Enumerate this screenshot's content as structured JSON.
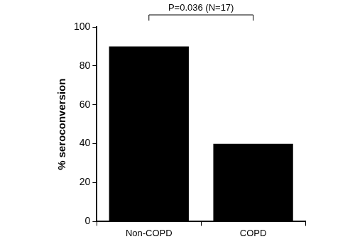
{
  "chart_data": {
    "type": "bar",
    "y_label": "% seroconversion",
    "categories": [
      "Non-COPD",
      "COPD"
    ],
    "values": [
      90,
      40
    ],
    "color": "#000000",
    "ylim": [
      0,
      100
    ],
    "yticks": [
      0,
      20,
      40,
      60,
      80,
      100
    ],
    "grid": false,
    "annotations": [
      "P=0.036 (N=17)"
    ]
  }
}
